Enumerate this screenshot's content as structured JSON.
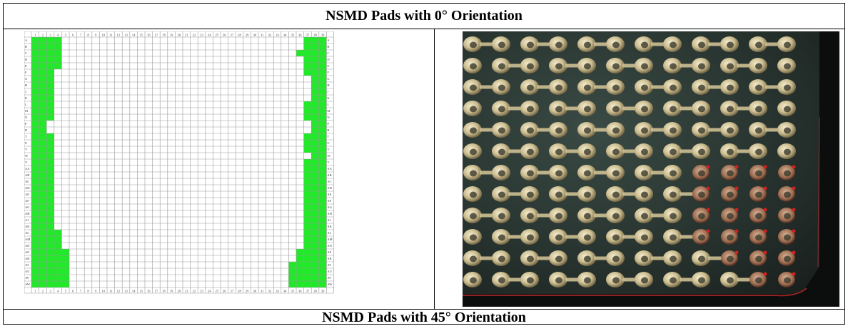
{
  "table": {
    "top_caption": "NSMD Pads with 0° Orientation",
    "bottom_caption": "NSMD Pads with 45° Orientation"
  },
  "pad_map": {
    "columns": [
      "1",
      "2",
      "3",
      "4",
      "5",
      "6",
      "7",
      "8",
      "9",
      "10",
      "11",
      "12",
      "13",
      "14",
      "15",
      "16",
      "17",
      "18",
      "19",
      "20",
      "21",
      "22",
      "23",
      "24",
      "25",
      "26",
      "27",
      "28",
      "29",
      "30",
      "31",
      "32",
      "33",
      "34",
      "35",
      "36",
      "37",
      "38",
      "39"
    ],
    "rows": [
      "A",
      "B",
      "C",
      "D",
      "E",
      "F",
      "G",
      "H",
      "J",
      "K",
      "L",
      "M",
      "N",
      "P",
      "R",
      "T",
      "U",
      "V",
      "W",
      "Y",
      "AA",
      "AB",
      "AC",
      "AD",
      "AE",
      "AF",
      "AG",
      "AH",
      "AJ",
      "AK",
      "AL",
      "AM",
      "AN",
      "AP",
      "AR",
      "AT",
      "AU",
      "AV",
      "AW"
    ],
    "fill_color": "#22e82a",
    "grid_color": "#9a9a9a",
    "filled_left": [
      [
        1,
        2,
        3,
        4
      ],
      [
        1,
        2,
        3,
        4
      ],
      [
        1,
        2,
        3,
        4
      ],
      [
        1,
        2,
        3,
        4
      ],
      [
        1,
        2,
        3,
        4
      ],
      [
        1,
        2,
        3
      ],
      [
        1,
        2,
        3
      ],
      [
        1,
        2,
        3
      ],
      [
        1,
        2,
        3
      ],
      [
        1,
        2,
        3
      ],
      [
        1,
        2,
        3
      ],
      [
        1,
        2,
        3
      ],
      [
        1,
        2,
        3
      ],
      [
        1,
        2
      ],
      [
        1,
        2
      ],
      [
        1,
        2,
        3
      ],
      [
        1,
        2,
        3
      ],
      [
        1,
        2,
        3
      ],
      [
        1,
        2,
        3
      ],
      [
        1,
        2,
        3
      ],
      [
        1,
        2,
        3
      ],
      [
        1,
        2,
        3
      ],
      [
        1,
        2,
        3
      ],
      [
        1,
        2,
        3
      ],
      [
        1,
        2,
        3
      ],
      [
        1,
        2,
        3
      ],
      [
        1,
        2,
        3
      ],
      [
        1,
        2,
        3
      ],
      [
        1,
        2,
        3
      ],
      [
        1,
        2,
        3
      ],
      [
        1,
        2,
        3,
        4
      ],
      [
        1,
        2,
        3,
        4
      ],
      [
        1,
        2,
        3,
        4
      ],
      [
        1,
        2,
        3,
        4,
        5
      ],
      [
        1,
        2,
        3,
        4,
        5
      ],
      [
        1,
        2,
        3,
        4,
        5
      ],
      [
        1,
        2,
        3,
        4,
        5
      ],
      [
        1,
        2,
        3,
        4,
        5
      ],
      [
        1,
        2,
        3,
        4,
        5
      ]
    ],
    "filled_right": [
      [
        37,
        38,
        39
      ],
      [
        37,
        38,
        39
      ],
      [
        36,
        37,
        38,
        39
      ],
      [
        37,
        38,
        39
      ],
      [
        37,
        38,
        39
      ],
      [
        37,
        38,
        39
      ],
      [
        38,
        39
      ],
      [
        38,
        39
      ],
      [
        38,
        39
      ],
      [
        38,
        39
      ],
      [
        37,
        38,
        39
      ],
      [
        37,
        38,
        39
      ],
      [
        37,
        38,
        39
      ],
      [
        38,
        39
      ],
      [
        38,
        39
      ],
      [
        37,
        38,
        39
      ],
      [
        37,
        38,
        39
      ],
      [
        37,
        38,
        39
      ],
      [
        38,
        39
      ],
      [
        37,
        38,
        39
      ],
      [
        37,
        38,
        39
      ],
      [
        37,
        38,
        39
      ],
      [
        37,
        38,
        39
      ],
      [
        37,
        38,
        39
      ],
      [
        37,
        38,
        39
      ],
      [
        37,
        38,
        39
      ],
      [
        37,
        38,
        39
      ],
      [
        37,
        38,
        39
      ],
      [
        37,
        38,
        39
      ],
      [
        37,
        38,
        39
      ],
      [
        37,
        38,
        39
      ],
      [
        37,
        38,
        39
      ],
      [
        37,
        38,
        39
      ],
      [
        36,
        37,
        38,
        39
      ],
      [
        36,
        37,
        38,
        39
      ],
      [
        35,
        36,
        37,
        38,
        39
      ],
      [
        35,
        36,
        37,
        38,
        39
      ],
      [
        35,
        36,
        37,
        38,
        39
      ],
      [
        35,
        36,
        37,
        38,
        39
      ]
    ]
  },
  "photo": {
    "description_icon": "pcb-pad-micrograph"
  }
}
